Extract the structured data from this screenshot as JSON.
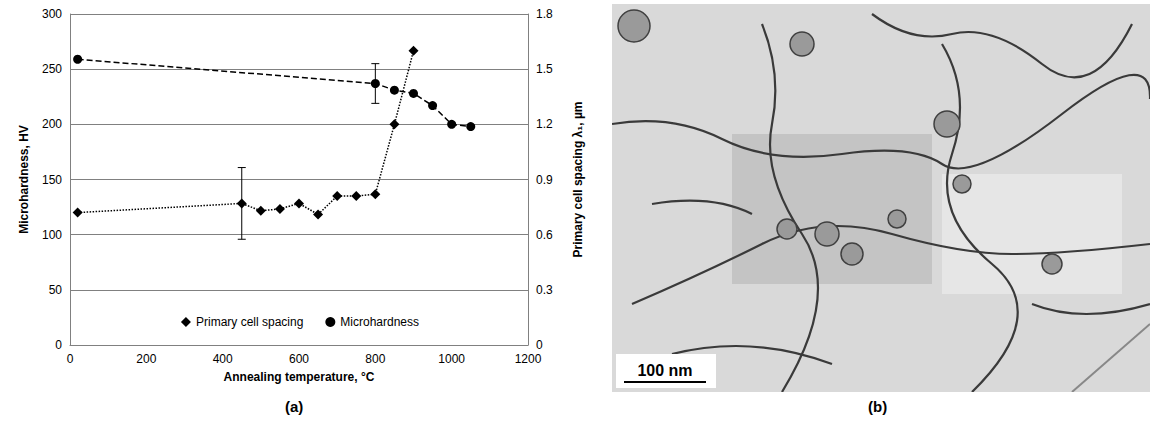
{
  "chart_data": {
    "type": "line",
    "panel": "(a)",
    "x_label": "Annealing temperature, °C",
    "y_label": "Microhardness, HV",
    "y2_label": "Primary cell spacing λ₁, µm",
    "xlim": [
      0,
      1200
    ],
    "xticks": [
      0,
      200,
      400,
      600,
      800,
      1000,
      1200
    ],
    "ylim": [
      0,
      300
    ],
    "yticks": [
      0,
      50,
      100,
      150,
      200,
      250,
      300
    ],
    "y2lim": [
      0,
      1.8
    ],
    "y2ticks": [
      0,
      0.3,
      0.6,
      0.9,
      1.2,
      1.5,
      1.8
    ],
    "grid": true,
    "legend": "bottom",
    "series": [
      {
        "name": "Primary cell spacing",
        "axis": "y2",
        "color": "#000000",
        "marker": "diamond",
        "line_style": "dotted",
        "x": [
          20,
          450,
          500,
          550,
          600,
          650,
          700,
          750,
          800,
          850,
          900
        ],
        "values": [
          0.72,
          0.77,
          0.73,
          0.74,
          0.77,
          0.71,
          0.81,
          0.81,
          0.82,
          1.2,
          1.6
        ],
        "errors": [
          null,
          0.195,
          null,
          null,
          null,
          null,
          null,
          null,
          null,
          null,
          null
        ]
      },
      {
        "name": "Microhardness",
        "color": "#000000",
        "marker": "circle",
        "line_style": "dashed",
        "x": [
          20,
          800,
          850,
          900,
          950,
          1000,
          1050
        ],
        "values": [
          259,
          237,
          231,
          228,
          217,
          200,
          198
        ],
        "errors": [
          null,
          18,
          null,
          null,
          null,
          null,
          null
        ]
      }
    ]
  },
  "image": {
    "panel": "(b)",
    "scale_bar": "100 nm"
  }
}
